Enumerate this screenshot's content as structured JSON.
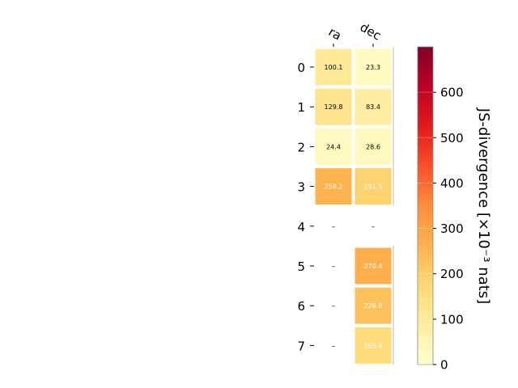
{
  "chart_data": {
    "type": "heatmap",
    "columns": [
      "ra",
      "dec"
    ],
    "rows": [
      "0",
      "1",
      "2",
      "3",
      "4",
      "5",
      "6",
      "7"
    ],
    "values": [
      [
        100.1,
        23.3
      ],
      [
        129.8,
        83.4
      ],
      [
        24.4,
        28.6
      ],
      [
        258.2,
        191.5
      ],
      [
        null,
        null
      ],
      [
        null,
        270.4
      ],
      [
        null,
        226.8
      ],
      [
        null,
        165.4
      ]
    ],
    "cell_labels": [
      [
        "100.1",
        "23.3"
      ],
      [
        "129.8",
        "83.4"
      ],
      [
        "24.4",
        "28.6"
      ],
      [
        "258.2",
        "191.5"
      ],
      [
        "–",
        "–"
      ],
      [
        "–",
        "270.4"
      ],
      [
        "–",
        "226.8"
      ],
      [
        "–",
        "165.4"
      ]
    ],
    "colorbar": {
      "label": "JS-divergence [×10⁻³ nats]",
      "range": [
        0,
        700
      ],
      "ticks": [
        "0",
        "100",
        "200",
        "300",
        "400",
        "500",
        "600"
      ],
      "colormap": [
        "#ffffcc",
        "#ffeda0",
        "#fed976",
        "#feb24c",
        "#fd8d3c",
        "#fc4e2a",
        "#e31a1c",
        "#bd0026",
        "#800026"
      ]
    },
    "missing_marker": "–",
    "grid": false
  }
}
